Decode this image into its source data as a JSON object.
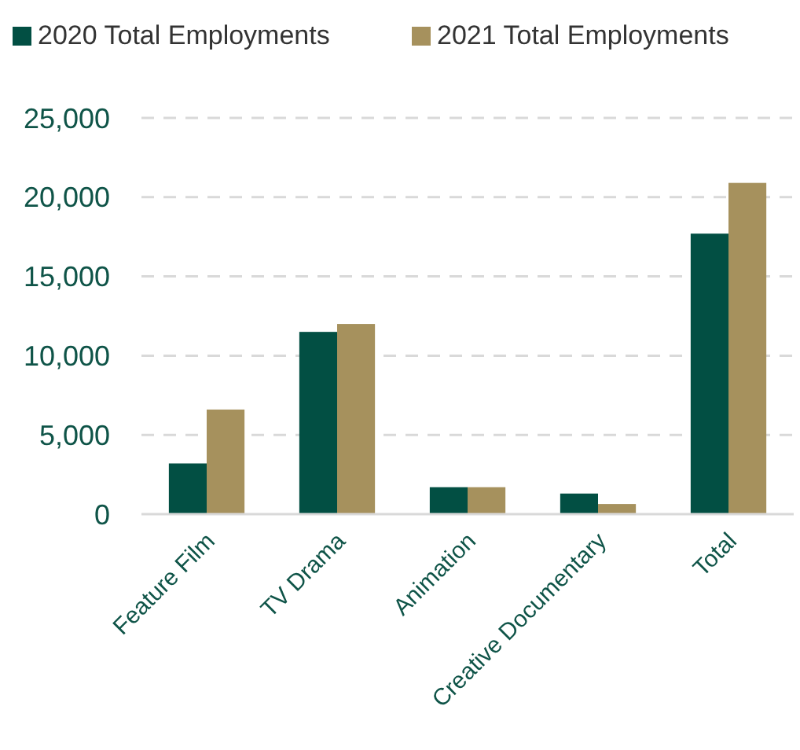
{
  "chart_data": {
    "type": "bar",
    "categories": [
      "Feature Film",
      "TV Drama",
      "Animation",
      "Creative Documentary",
      "Total"
    ],
    "series": [
      {
        "name": "2020 Total Employments",
        "color": "#024f43",
        "values": [
          3200,
          11500,
          1700,
          1300,
          17700
        ]
      },
      {
        "name": "2021 Total Employments",
        "color": "#a6915d",
        "values": [
          6600,
          12000,
          1700,
          640,
          20900
        ]
      }
    ],
    "ylim": [
      0,
      25000
    ],
    "yticks": [
      {
        "value": 0,
        "label": "0"
      },
      {
        "value": 5000,
        "label": "5,000"
      },
      {
        "value": 10000,
        "label": "10,000"
      },
      {
        "value": 15000,
        "label": "15,000"
      },
      {
        "value": 20000,
        "label": "20,000"
      },
      {
        "value": 25000,
        "label": "25,000"
      }
    ],
    "grid": "y",
    "legend": "top"
  }
}
